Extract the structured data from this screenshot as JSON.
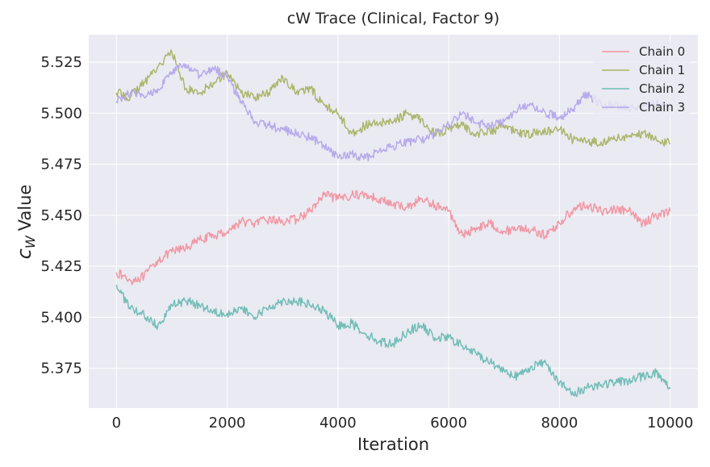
{
  "chart_data": {
    "type": "line",
    "title": "cW Trace (Clinical, Factor 9)",
    "xlabel": "Iteration",
    "ylabel": "Value",
    "ylabel_math": "c",
    "ylabel_sub": "W",
    "xlim": [
      -500,
      10500
    ],
    "ylim": [
      5.3555,
      5.5385
    ],
    "xticks": [
      0,
      2000,
      4000,
      6000,
      8000,
      10000
    ],
    "xtick_labels": [
      "0",
      "2000",
      "4000",
      "6000",
      "8000",
      "10000"
    ],
    "yticks": [
      5.375,
      5.4,
      5.425,
      5.45,
      5.475,
      5.5,
      5.525
    ],
    "ytick_labels": [
      "5.375",
      "5.400",
      "5.425",
      "5.450",
      "5.475",
      "5.500",
      "5.525"
    ],
    "grid": true,
    "legend_position": "top-right",
    "series": [
      {
        "name": "Chain 0",
        "color": "#f1939f",
        "x": [
          0,
          250,
          500,
          750,
          1000,
          1250,
          1500,
          1750,
          2000,
          2250,
          2500,
          2750,
          3000,
          3250,
          3500,
          3750,
          4000,
          4250,
          4500,
          4750,
          5000,
          5250,
          5500,
          5750,
          6000,
          6250,
          6500,
          6750,
          7000,
          7250,
          7500,
          7750,
          8000,
          8250,
          8500,
          8750,
          9000,
          9250,
          9500,
          9750,
          10000
        ],
        "values": [
          5.422,
          5.418,
          5.42,
          5.428,
          5.432,
          5.434,
          5.438,
          5.44,
          5.442,
          5.447,
          5.446,
          5.448,
          5.447,
          5.448,
          5.452,
          5.46,
          5.458,
          5.46,
          5.46,
          5.458,
          5.455,
          5.454,
          5.458,
          5.455,
          5.452,
          5.44,
          5.444,
          5.446,
          5.442,
          5.444,
          5.443,
          5.44,
          5.446,
          5.453,
          5.455,
          5.452,
          5.453,
          5.452,
          5.446,
          5.45,
          5.452
        ]
      },
      {
        "name": "Chain 1",
        "color": "#a9b364",
        "x": [
          0,
          250,
          500,
          750,
          1000,
          1250,
          1500,
          1750,
          2000,
          2250,
          2500,
          2750,
          3000,
          3250,
          3500,
          3750,
          4000,
          4250,
          4500,
          4750,
          5000,
          5250,
          5500,
          5750,
          6000,
          6250,
          6500,
          6750,
          7000,
          7250,
          7500,
          7750,
          8000,
          8250,
          8500,
          8750,
          9000,
          9250,
          9500,
          9750,
          10000
        ],
        "values": [
          5.51,
          5.508,
          5.515,
          5.523,
          5.53,
          5.512,
          5.51,
          5.515,
          5.52,
          5.51,
          5.508,
          5.51,
          5.518,
          5.51,
          5.512,
          5.504,
          5.5,
          5.49,
          5.494,
          5.495,
          5.496,
          5.5,
          5.497,
          5.49,
          5.492,
          5.494,
          5.49,
          5.491,
          5.494,
          5.49,
          5.49,
          5.491,
          5.492,
          5.487,
          5.486,
          5.486,
          5.487,
          5.489,
          5.49,
          5.487,
          5.485
        ]
      },
      {
        "name": "Chain 2",
        "color": "#6cbcb3",
        "x": [
          0,
          250,
          500,
          750,
          1000,
          1250,
          1500,
          1750,
          2000,
          2250,
          2500,
          2750,
          3000,
          3250,
          3500,
          3750,
          4000,
          4250,
          4500,
          4750,
          5000,
          5250,
          5500,
          5750,
          6000,
          6250,
          6500,
          6750,
          7000,
          7250,
          7500,
          7750,
          8000,
          8250,
          8500,
          8750,
          9000,
          9250,
          9500,
          9750,
          10000
        ],
        "values": [
          5.416,
          5.404,
          5.401,
          5.396,
          5.406,
          5.408,
          5.406,
          5.403,
          5.402,
          5.404,
          5.4,
          5.405,
          5.408,
          5.408,
          5.406,
          5.403,
          5.396,
          5.397,
          5.392,
          5.388,
          5.387,
          5.393,
          5.396,
          5.39,
          5.39,
          5.386,
          5.382,
          5.378,
          5.374,
          5.371,
          5.376,
          5.378,
          5.368,
          5.362,
          5.366,
          5.367,
          5.368,
          5.369,
          5.371,
          5.373,
          5.365
        ]
      },
      {
        "name": "Chain 3",
        "color": "#b4a6ea",
        "x": [
          0,
          250,
          500,
          750,
          1000,
          1250,
          1500,
          1750,
          2000,
          2250,
          2500,
          2750,
          3000,
          3250,
          3500,
          3750,
          4000,
          4250,
          4500,
          4750,
          5000,
          5250,
          5500,
          5750,
          6000,
          6250,
          6500,
          6750,
          7000,
          7250,
          7500,
          7750,
          8000,
          8250,
          8500,
          8750,
          9000,
          9250,
          9500,
          9750,
          10000
        ],
        "values": [
          5.506,
          5.51,
          5.508,
          5.512,
          5.52,
          5.524,
          5.518,
          5.522,
          5.518,
          5.506,
          5.496,
          5.494,
          5.492,
          5.49,
          5.488,
          5.484,
          5.478,
          5.48,
          5.478,
          5.482,
          5.484,
          5.486,
          5.487,
          5.49,
          5.494,
          5.5,
          5.495,
          5.494,
          5.496,
          5.502,
          5.504,
          5.5,
          5.498,
          5.502,
          5.51,
          5.504,
          5.504,
          5.502,
          5.504,
          5.505,
          5.502
        ]
      }
    ]
  }
}
